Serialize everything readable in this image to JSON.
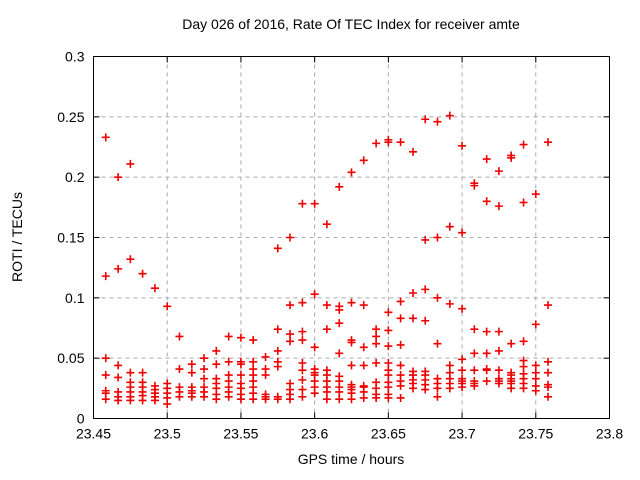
{
  "chart_data": {
    "type": "scatter",
    "title": "Day 026 of 2016, Rate Of TEC Index for receiver amte",
    "xlabel": "GPS time / hours",
    "ylabel": "ROTI / TECUs",
    "xlim": [
      23.45,
      23.8
    ],
    "ylim": [
      0,
      0.3
    ],
    "xticks": [
      23.45,
      23.5,
      23.55,
      23.6,
      23.65,
      23.7,
      23.75,
      23.8
    ],
    "yticks": [
      0,
      0.05,
      0.1,
      0.15,
      0.2,
      0.25,
      0.3
    ],
    "grid": true,
    "legend_position": "none",
    "marker": {
      "shape": "plus",
      "color": "#ee0000",
      "size": 9
    },
    "axis_color": "#000000",
    "grid_color": "#a8a8a8",
    "background": "#ffffff",
    "series": [
      {
        "name": "ROTI",
        "columns": [
          {
            "t": 23.4583,
            "v": [
              0.233,
              0.118,
              0.05,
              0.036,
              0.023,
              0.021,
              0.016
            ]
          },
          {
            "t": 23.4667,
            "v": [
              0.2,
              0.124,
              0.044,
              0.034,
              0.022,
              0.018,
              0.015
            ]
          },
          {
            "t": 23.475,
            "v": [
              0.211,
              0.132,
              0.038,
              0.03,
              0.026,
              0.022,
              0.018,
              0.015
            ]
          },
          {
            "t": 23.4833,
            "v": [
              0.12,
              0.038,
              0.03,
              0.026,
              0.022,
              0.019,
              0.015
            ]
          },
          {
            "t": 23.4917,
            "v": [
              0.108,
              0.027,
              0.024,
              0.021,
              0.018,
              0.015
            ]
          },
          {
            "t": 23.5,
            "v": [
              0.093,
              0.029,
              0.025,
              0.021,
              0.017,
              0.012
            ]
          },
          {
            "t": 23.5083,
            "v": [
              0.068,
              0.041,
              0.026,
              0.022,
              0.018
            ]
          },
          {
            "t": 23.5167,
            "v": [
              0.045,
              0.038,
              0.026,
              0.023,
              0.021,
              0.018
            ]
          },
          {
            "t": 23.525,
            "v": [
              0.05,
              0.041,
              0.033,
              0.026,
              0.022,
              0.018
            ]
          },
          {
            "t": 23.5333,
            "v": [
              0.056,
              0.045,
              0.033,
              0.029,
              0.025,
              0.02,
              0.016
            ]
          },
          {
            "t": 23.5417,
            "v": [
              0.068,
              0.047,
              0.036,
              0.031,
              0.026,
              0.022,
              0.018
            ]
          },
          {
            "t": 23.55,
            "v": [
              0.067,
              0.047,
              0.045,
              0.036,
              0.029,
              0.025,
              0.02,
              0.016
            ]
          },
          {
            "t": 23.5583,
            "v": [
              0.065,
              0.047,
              0.041,
              0.036,
              0.031,
              0.026,
              0.021,
              0.016
            ]
          },
          {
            "t": 23.5667,
            "v": [
              0.051,
              0.041,
              0.036,
              0.02,
              0.018,
              0.016
            ]
          },
          {
            "t": 23.575,
            "v": [
              0.141,
              0.074,
              0.056,
              0.047,
              0.043,
              0.018,
              0.016
            ]
          },
          {
            "t": 23.5833,
            "v": [
              0.15,
              0.094,
              0.07,
              0.064,
              0.029,
              0.024,
              0.02,
              0.016
            ]
          },
          {
            "t": 23.5917,
            "v": [
              0.178,
              0.096,
              0.072,
              0.065,
              0.046,
              0.04,
              0.032,
              0.024,
              0.018
            ]
          },
          {
            "t": 23.6,
            "v": [
              0.178,
              0.103,
              0.059,
              0.041,
              0.038,
              0.036,
              0.031,
              0.026,
              0.021
            ]
          },
          {
            "t": 23.6083,
            "v": [
              0.161,
              0.094,
              0.074,
              0.04,
              0.036,
              0.031,
              0.026,
              0.022,
              0.016
            ]
          },
          {
            "t": 23.6167,
            "v": [
              0.192,
              0.093,
              0.09,
              0.079,
              0.054,
              0.035,
              0.031,
              0.026,
              0.022,
              0.016
            ]
          },
          {
            "t": 23.625,
            "v": [
              0.204,
              0.096,
              0.065,
              0.063,
              0.044,
              0.028,
              0.026,
              0.024,
              0.021,
              0.016
            ]
          },
          {
            "t": 23.6333,
            "v": [
              0.214,
              0.094,
              0.059,
              0.044,
              0.027,
              0.026,
              0.022,
              0.017
            ]
          },
          {
            "t": 23.6417,
            "v": [
              0.228,
              0.074,
              0.068,
              0.062,
              0.046,
              0.03,
              0.025,
              0.02,
              0.017
            ]
          },
          {
            "t": 23.65,
            "v": [
              0.231,
              0.229,
              0.088,
              0.073,
              0.06,
              0.046,
              0.04,
              0.036,
              0.03,
              0.026,
              0.02,
              0.017
            ]
          },
          {
            "t": 23.6583,
            "v": [
              0.229,
              0.097,
              0.083,
              0.061,
              0.044,
              0.036,
              0.031,
              0.027,
              0.017
            ]
          },
          {
            "t": 23.6667,
            "v": [
              0.221,
              0.104,
              0.083,
              0.039,
              0.036,
              0.032,
              0.029,
              0.025
            ]
          },
          {
            "t": 23.675,
            "v": [
              0.248,
              0.148,
              0.107,
              0.081,
              0.039,
              0.036,
              0.032,
              0.028,
              0.024
            ]
          },
          {
            "t": 23.6833,
            "v": [
              0.246,
              0.15,
              0.1,
              0.062,
              0.033,
              0.029,
              0.025,
              0.018
            ]
          },
          {
            "t": 23.6917,
            "v": [
              0.251,
              0.159,
              0.095,
              0.044,
              0.038,
              0.033,
              0.029,
              0.025
            ]
          },
          {
            "t": 23.7,
            "v": [
              0.226,
              0.154,
              0.091,
              0.049,
              0.04,
              0.033,
              0.031,
              0.029,
              0.026
            ]
          },
          {
            "t": 23.7083,
            "v": [
              0.195,
              0.193,
              0.074,
              0.054,
              0.04,
              0.031,
              0.029,
              0.027
            ]
          },
          {
            "t": 23.7167,
            "v": [
              0.215,
              0.18,
              0.072,
              0.054,
              0.041,
              0.04,
              0.031
            ]
          },
          {
            "t": 23.725,
            "v": [
              0.205,
              0.176,
              0.072,
              0.056,
              0.04,
              0.033,
              0.031,
              0.029
            ]
          },
          {
            "t": 23.7333,
            "v": [
              0.218,
              0.216,
              0.062,
              0.038,
              0.036,
              0.033,
              0.031,
              0.029,
              0.025
            ]
          },
          {
            "t": 23.7417,
            "v": [
              0.227,
              0.179,
              0.064,
              0.048,
              0.043,
              0.037,
              0.033,
              0.029,
              0.025
            ]
          },
          {
            "t": 23.75,
            "v": [
              0.186,
              0.078,
              0.044,
              0.038,
              0.033,
              0.027,
              0.023
            ]
          },
          {
            "t": 23.7583,
            "v": [
              0.229,
              0.094,
              0.047,
              0.038,
              0.028,
              0.026,
              0.018
            ]
          }
        ]
      }
    ]
  }
}
